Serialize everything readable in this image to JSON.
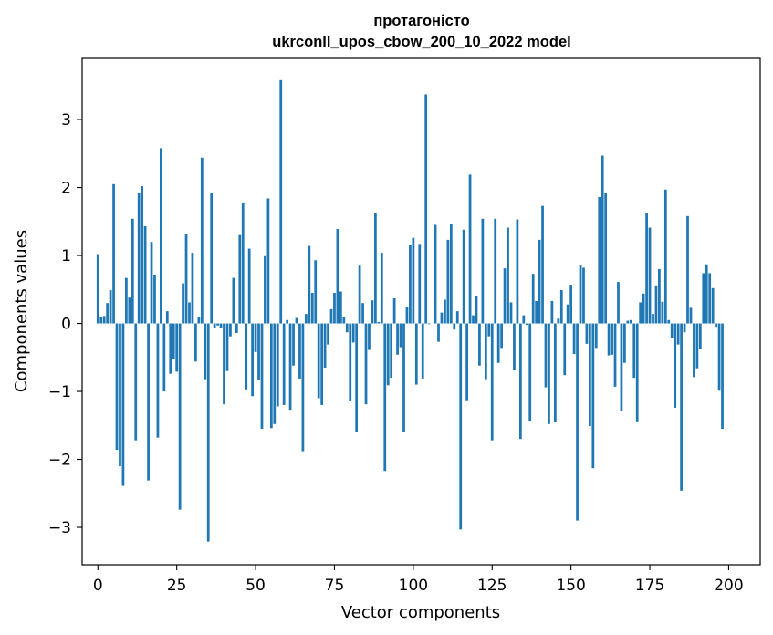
{
  "chart_data": {
    "type": "bar",
    "title": "протагоністо",
    "subtitle": "ukrconll_upos_cbow_200_10_2022 model",
    "xlabel": "Vector components",
    "ylabel": "Components values",
    "xlim": [
      -5,
      210
    ],
    "ylim": [
      -3.55,
      3.9
    ],
    "xticks": [
      0,
      25,
      50,
      75,
      100,
      125,
      150,
      175,
      200
    ],
    "yticks": [
      -3,
      -2,
      -1,
      0,
      1,
      2,
      3
    ],
    "xtick_labels": [
      "0",
      "25",
      "50",
      "75",
      "100",
      "125",
      "150",
      "175",
      "200"
    ],
    "ytick_labels": [
      "−3",
      "−2",
      "−1",
      "0",
      "1",
      "2",
      "3"
    ],
    "grid": false,
    "bar_color": "#1f77b4",
    "values": [
      1.02,
      0.09,
      0.11,
      0.3,
      0.49,
      2.05,
      -1.86,
      -2.1,
      -2.39,
      0.67,
      0.38,
      1.54,
      -1.72,
      1.92,
      2.02,
      1.43,
      -2.31,
      1.2,
      0.72,
      -1.68,
      2.58,
      -1.0,
      0.18,
      -0.74,
      -0.52,
      -0.71,
      -2.74,
      0.59,
      1.31,
      0.31,
      1.04,
      -0.56,
      0.1,
      2.44,
      -0.82,
      -3.21,
      1.92,
      -0.06,
      -0.03,
      -0.06,
      -1.19,
      -0.7,
      -0.19,
      0.67,
      -0.14,
      1.3,
      1.77,
      -0.97,
      1.1,
      -1.07,
      -0.42,
      -0.83,
      -1.55,
      0.99,
      1.84,
      -1.54,
      -1.48,
      -1.22,
      3.58,
      -1.2,
      0.05,
      -1.27,
      -0.62,
      0.08,
      -0.81,
      -1.88,
      0.14,
      1.14,
      0.45,
      0.93,
      -1.1,
      -1.2,
      -0.65,
      -0.31,
      0.21,
      0.45,
      1.39,
      0.47,
      0.1,
      -0.13,
      -1.14,
      -0.28,
      -1.6,
      0.85,
      0.3,
      -1.19,
      -0.39,
      0.34,
      1.62,
      0.02,
      1.04,
      -2.17,
      -0.91,
      -0.8,
      0.37,
      -0.46,
      -0.35,
      -1.6,
      0.24,
      1.15,
      1.26,
      -0.9,
      1.17,
      -0.81,
      3.37,
      -0.01,
      0.0,
      1.45,
      -0.27,
      0.16,
      0.35,
      1.23,
      1.46,
      -0.09,
      0.18,
      -3.03,
      1.38,
      -1.13,
      2.19,
      0.12,
      0.41,
      -0.62,
      1.54,
      -0.82,
      -0.19,
      -1.72,
      1.54,
      -0.58,
      -0.36,
      0.81,
      1.41,
      0.31,
      -0.68,
      1.53,
      -1.7,
      0.12,
      -0.02,
      -1.43,
      0.73,
      0.33,
      1.23,
      1.73,
      -0.94,
      -1.48,
      0.33,
      -1.45,
      0.07,
      0.49,
      -0.76,
      0.28,
      0.57,
      -0.45,
      -2.9,
      0.86,
      0.82,
      -0.3,
      -1.51,
      -2.13,
      -0.36,
      1.86,
      2.47,
      1.92,
      -0.47,
      -0.46,
      -0.93,
      0.61,
      -1.29,
      -0.58,
      0.04,
      0.05,
      -0.8,
      -1.44,
      0.31,
      0.44,
      1.62,
      1.41,
      0.14,
      0.56,
      0.8,
      0.32,
      1.97,
      0.05,
      -0.21,
      -1.24,
      -0.31,
      -2.46,
      -0.13,
      1.58,
      0.23,
      -0.79,
      -0.66,
      -0.37,
      0.74,
      0.87,
      0.74,
      0.52,
      -0.05,
      -0.99,
      -1.55
    ]
  }
}
